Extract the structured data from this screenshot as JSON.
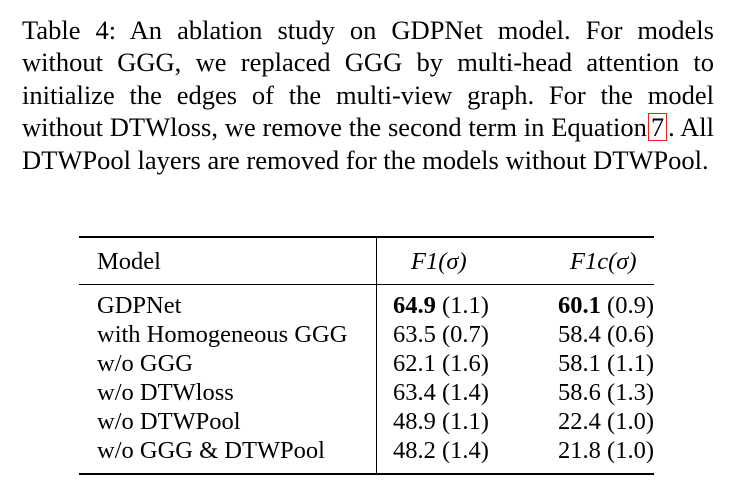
{
  "caption": {
    "part1": "Table 4: An ablation study on GDPNet model. For models without GGG, we replaced GGG by multi-head attention to initialize the edges of the multi-view graph. For the model without DTWloss, we remove the second term in Equation",
    "ref": "7",
    "part2": ". All DTWPool layers are removed for the models without DTWPool."
  },
  "table": {
    "headers": {
      "model": "Model",
      "f1": "F1(σ)",
      "f1c": "F1c(σ)"
    },
    "rows": [
      {
        "model": "GDPNet",
        "f1_main": "64.9",
        "f1_std": " (1.1)",
        "f1c_main": "60.1",
        "f1c_std": " (0.9)"
      },
      {
        "model": "with Homogeneous GGG",
        "f1": "63.5 (0.7)",
        "f1c": "58.4 (0.6)"
      },
      {
        "model": "w/o GGG",
        "f1": "62.1 (1.6)",
        "f1c": "58.1 (1.1)"
      },
      {
        "model": "w/o DTWloss",
        "f1": "63.4 (1.4)",
        "f1c": "58.6 (1.3)"
      },
      {
        "model": "w/o DTWPool",
        "f1": "48.9 (1.1)",
        "f1c": "22.4 (1.0)"
      },
      {
        "model": "w/o GGG & DTWPool",
        "f1": "48.2 (1.4)",
        "f1c": "21.8 (1.0)"
      }
    ]
  }
}
